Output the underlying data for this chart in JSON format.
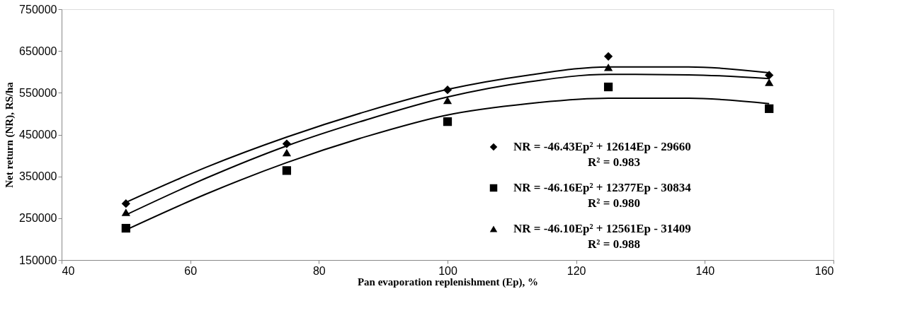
{
  "chart_data": {
    "type": "scatter",
    "xlabel": "Pan evaporation replenishment (Ep), %",
    "ylabel": "Net return (NR), RS/ha",
    "x": [
      50,
      75,
      100,
      125,
      150
    ],
    "series": [
      {
        "name": "NR   = -46.43Ep² + 12614Ep - 29660\nR² = 0.983",
        "color": "#000000",
        "marker": "diamond",
        "values": [
          285000,
          428000,
          557000,
          637000,
          592000
        ]
      },
      {
        "name": "NR   = -46.16Ep² + 12377Ep - 30834\nR² = 0.980",
        "color": "#000000",
        "marker": "square",
        "values": [
          226000,
          364000,
          481000,
          564000,
          512000
        ]
      },
      {
        "name": "NR   = -46.10Ep² + 12561Ep - 31409\nR² = 0.988",
        "color": "#000000",
        "marker": "triangle",
        "values": [
          264000,
          407000,
          532000,
          611000,
          575000
        ]
      },
      {
        "type": "line",
        "color": "#000000",
        "x": [
          50,
          62.5,
          75,
          87.5,
          100,
          112.5,
          125,
          137.5,
          150
        ],
        "values": [
          288000,
          372000,
          444000,
          506000,
          558000,
          592000,
          612000,
          612000,
          598000
        ]
      },
      {
        "type": "line",
        "color": "#000000",
        "x": [
          50,
          62.5,
          75,
          87.5,
          100,
          112.5,
          125,
          137.5,
          150
        ],
        "values": [
          258000,
          346000,
          423000,
          486000,
          540000,
          576000,
          594000,
          593000,
          584000
        ]
      },
      {
        "type": "line",
        "color": "#000000",
        "x": [
          50,
          62.5,
          75,
          87.5,
          100,
          112.5,
          125,
          137.5,
          150
        ],
        "values": [
          222000,
          308000,
          383000,
          446000,
          497000,
          524000,
          537000,
          537000,
          524000
        ]
      }
    ],
    "xlim": [
      40,
      160
    ],
    "xticks": [
      40,
      60,
      80,
      100,
      120,
      140,
      160
    ],
    "ylim": [
      150000,
      750000
    ],
    "yticks": [
      150000,
      250000,
      350000,
      450000,
      550000,
      650000,
      750000
    ],
    "grid": false,
    "legend": "bottom right"
  }
}
